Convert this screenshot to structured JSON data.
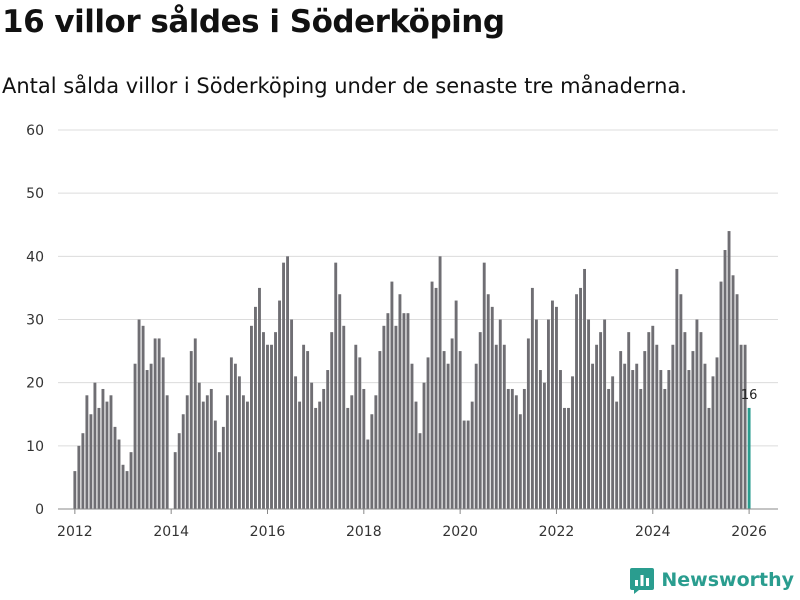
{
  "chart_data": {
    "type": "bar",
    "title": "16 villor såldes i Söderköping",
    "subtitle": "Antal sålda villor i Söderköping under de senaste tre månaderna.",
    "ylim": [
      0,
      60
    ],
    "yticks": [
      0,
      10,
      20,
      30,
      40,
      50,
      60
    ],
    "xlim": [
      2011.65,
      2026.6
    ],
    "xticks": [
      2012,
      2014,
      2016,
      2018,
      2020,
      2022,
      2024,
      2026
    ],
    "start": {
      "year": 2012,
      "month": 1
    },
    "values": [
      6,
      10,
      12,
      18,
      15,
      20,
      16,
      19,
      17,
      18,
      13,
      11,
      7,
      6,
      9,
      23,
      30,
      29,
      22,
      23,
      27,
      27,
      24,
      18,
      0,
      9,
      12,
      15,
      18,
      25,
      27,
      20,
      17,
      18,
      19,
      14,
      9,
      13,
      18,
      24,
      23,
      21,
      18,
      17,
      29,
      32,
      35,
      28,
      26,
      26,
      28,
      33,
      39,
      40,
      30,
      21,
      17,
      26,
      25,
      20,
      16,
      17,
      19,
      22,
      28,
      39,
      34,
      29,
      16,
      18,
      26,
      24,
      19,
      11,
      15,
      18,
      25,
      29,
      31,
      36,
      29,
      34,
      31,
      31,
      23,
      17,
      12,
      20,
      24,
      36,
      35,
      40,
      25,
      23,
      27,
      33,
      25,
      14,
      14,
      17,
      23,
      28,
      39,
      34,
      32,
      26,
      30,
      26,
      19,
      19,
      18,
      15,
      19,
      27,
      35,
      30,
      22,
      20,
      30,
      33,
      32,
      22,
      16,
      16,
      21,
      34,
      35,
      38,
      30,
      23,
      26,
      28,
      30,
      19,
      21,
      17,
      25,
      23,
      28,
      22,
      23,
      19,
      25,
      28,
      29,
      26,
      22,
      19,
      22,
      26,
      38,
      34,
      28,
      22,
      25,
      30,
      28,
      23,
      16,
      21,
      24,
      36,
      41,
      44,
      37,
      34,
      26,
      26,
      16
    ],
    "highlight_last": true,
    "last_label": "16",
    "colors": {
      "bar": "#6f6e73",
      "highlight": "#2a9d8f",
      "grid": "#dcdcdc"
    }
  },
  "brand": {
    "name": "Newsworthy"
  }
}
